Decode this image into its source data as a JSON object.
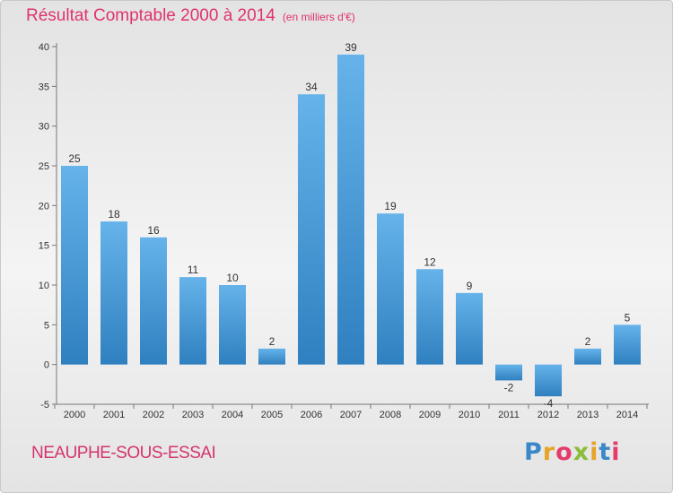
{
  "title": "Résultat Comptable 2000 à 2014",
  "subtitle": "(en milliers d'€)",
  "location": "NEAUPHE-SOUS-ESSAI",
  "logo": {
    "letters": [
      "P",
      "r",
      "o",
      "x",
      "i",
      "t",
      "i"
    ],
    "colors": [
      "#3a88c8",
      "#e6a42a",
      "#e33c6a",
      "#8bbd3c",
      "#e6a42a",
      "#3a88c8",
      "#e33c6a"
    ]
  },
  "colors": {
    "bar_light": "#66b3ea",
    "bar_dark": "#2f80c0",
    "title": "#e0336b"
  },
  "chart_data": {
    "type": "bar",
    "title": "Résultat Comptable 2000 à 2014",
    "categories": [
      "2000",
      "2001",
      "2002",
      "2003",
      "2004",
      "2005",
      "2006",
      "2007",
      "2008",
      "2009",
      "2010",
      "2011",
      "2012",
      "2013",
      "2014"
    ],
    "values": [
      25,
      18,
      16,
      11,
      10,
      2,
      34,
      39,
      19,
      12,
      9,
      -2,
      -4,
      2,
      5
    ],
    "data_labels": [
      "25",
      "18",
      "16",
      "11",
      "10",
      "2",
      "34",
      "39",
      "19",
      "12",
      "9",
      "-2",
      "-4",
      "2",
      "5"
    ],
    "yticks": [
      -5,
      0,
      5,
      10,
      15,
      20,
      25,
      30,
      35,
      40
    ],
    "ylim": [
      -5,
      40
    ],
    "grid": false,
    "legend": "none"
  }
}
